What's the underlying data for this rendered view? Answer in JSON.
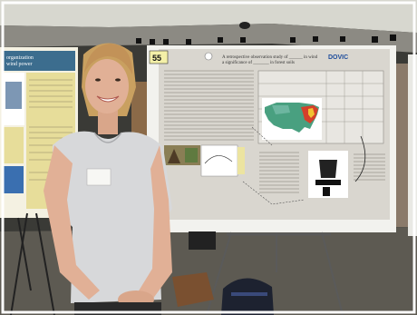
{
  "photo": {
    "colors": {
      "ceiling": "#d7d7cf",
      "wall": "#3a3a36",
      "carpet": "#5d5a52",
      "board": "#f2f2ee",
      "poster": "#d9d6cf",
      "shirt": "#d7d8da",
      "skin": "#e1b096",
      "hair": "#c9a060",
      "map_land": "#49a080",
      "map_hot": "#d4402a",
      "left_poster": "#e7dd9a",
      "left_poster_header": "#3c6d8e",
      "easel": "#6b6b6b"
    },
    "poster_number": "55",
    "left_poster_title": "organization\nwind power",
    "poster_title": "A retrospective observation study of ______ in wind\na significance of _______ in forest soils",
    "logo_text": "DOVIC"
  }
}
